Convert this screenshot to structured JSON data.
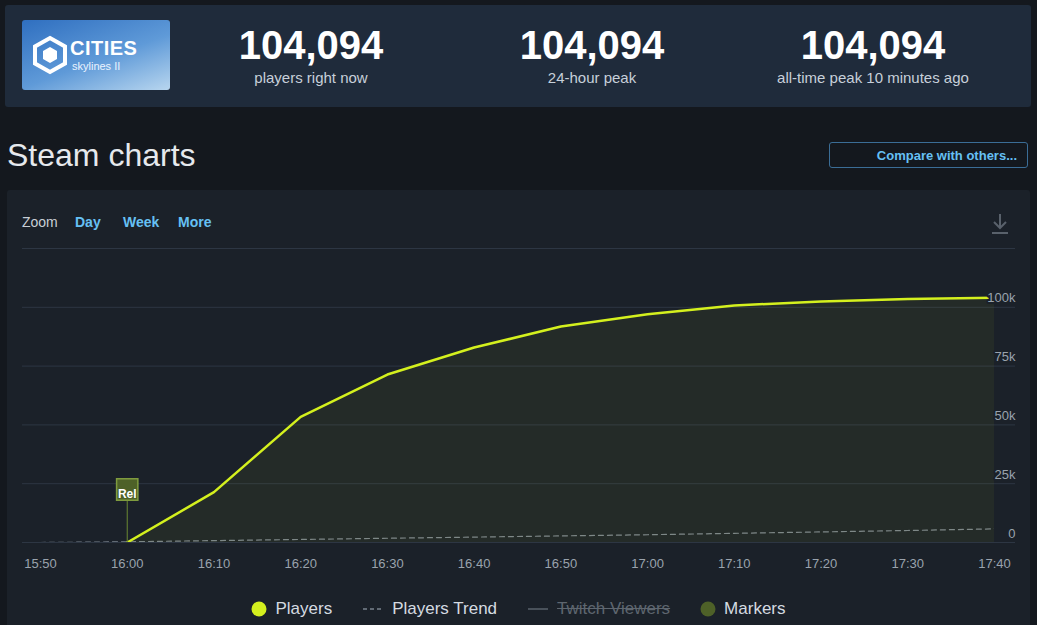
{
  "header": {
    "logo": {
      "title": "CITIES",
      "subtitle": "skylines II"
    },
    "stats": [
      {
        "value": "104,094",
        "label": "players right now"
      },
      {
        "value": "104,094",
        "label": "24-hour peak"
      },
      {
        "value": "104,094",
        "label": "all-time peak 10 minutes ago"
      }
    ]
  },
  "section_title": "Steam charts",
  "compare_button": "Compare with others...",
  "zoom": {
    "label": "Zoom",
    "options": [
      "Day",
      "Week",
      "More"
    ]
  },
  "chart_data": {
    "type": "line",
    "x": [
      "15:50",
      "16:00",
      "16:10",
      "16:20",
      "16:30",
      "16:40",
      "16:50",
      "17:00",
      "17:10",
      "17:20",
      "17:30",
      "17:40"
    ],
    "series": [
      {
        "name": "Players",
        "color": "#d4f01e",
        "values": [
          null,
          0,
          21400,
          53400,
          71400,
          82900,
          91800,
          97000,
          100800,
          102500,
          103500,
          104094
        ]
      },
      {
        "name": "Players Trend",
        "color": "#7a838d",
        "line_style": "dashed",
        "values": [
          0,
          300,
          800,
          1300,
          1800,
          2300,
          2800,
          3300,
          3900,
          4500,
          5100,
          5800
        ]
      }
    ],
    "inactive_series": [
      "Twitch Viewers"
    ],
    "markers": {
      "name": "Markers",
      "color": "#4e6128",
      "items": [
        {
          "x": "16:00",
          "label": "Rel"
        }
      ]
    },
    "xlim": [
      "15:50",
      "17:40"
    ],
    "xticks": [
      "15:50",
      "16:00",
      "16:10",
      "16:20",
      "16:30",
      "16:40",
      "16:50",
      "17:00",
      "17:10",
      "17:20",
      "17:30",
      "17:40"
    ],
    "ylim": [
      0,
      125000
    ],
    "yticks": [
      0,
      {
        "value": 25000,
        "label": "25k"
      },
      {
        "value": 50000,
        "label": "50k"
      },
      {
        "value": 75000,
        "label": "75k"
      },
      {
        "value": 100000,
        "label": "100k"
      }
    ],
    "grid": true,
    "legend": "bottom"
  }
}
